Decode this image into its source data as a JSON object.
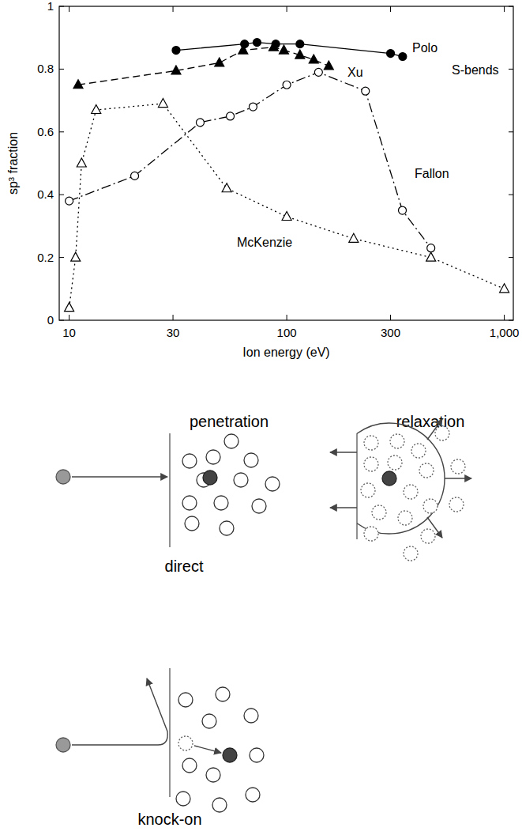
{
  "chart_data": {
    "type": "line",
    "x_label": "Ion energy (eV)",
    "y_label": "sp³ fraction",
    "log": "x",
    "grid": false,
    "xlim": [
      9,
      1100
    ],
    "ylim": [
      0,
      1
    ],
    "xticks": [
      10,
      30,
      100,
      300,
      {
        "value": 1000,
        "label": "1,000"
      }
    ],
    "yticks": [
      0,
      0.2,
      0.4,
      0.6,
      0.8,
      1
    ],
    "annotations": [
      {
        "text": "S-bends"
      }
    ],
    "series": [
      {
        "name": "Polo",
        "color": "#000000",
        "marker": "filled-circle",
        "line_style": "solid",
        "x": [
          31,
          64,
          73,
          89,
          115,
          300,
          341
        ],
        "values": [
          0.86,
          0.88,
          0.885,
          0.88,
          0.88,
          0.85,
          0.84
        ]
      },
      {
        "name": "Xu",
        "color": "#000000",
        "marker": "filled-triangle",
        "line_style": "dashed",
        "x": [
          11,
          31,
          49,
          63,
          87,
          97,
          115,
          133,
          156
        ],
        "values": [
          0.75,
          0.795,
          0.82,
          0.86,
          0.87,
          0.86,
          0.845,
          0.83,
          0.81
        ]
      },
      {
        "name": "McKenzie",
        "color": "#000000",
        "marker": "open-triangle",
        "line_style": "dotted",
        "x": [
          10,
          10.7,
          11.4,
          13.3,
          27,
          53,
          100,
          203,
          460,
          1000
        ],
        "values": [
          0.04,
          0.2,
          0.5,
          0.67,
          0.69,
          0.42,
          0.33,
          0.26,
          0.2,
          0.1
        ]
      },
      {
        "name": "Fallon",
        "color": "#000000",
        "marker": "open-circle",
        "line_style": "dashdot",
        "x": [
          10,
          20,
          40,
          55,
          70,
          100,
          140,
          230,
          340,
          460
        ],
        "values": [
          0.38,
          0.46,
          0.63,
          0.65,
          0.68,
          0.75,
          0.79,
          0.73,
          0.35,
          0.23
        ]
      }
    ]
  },
  "diagram": {
    "labels": [
      "penetration",
      "relaxation",
      "direct",
      "knock-on"
    ]
  }
}
